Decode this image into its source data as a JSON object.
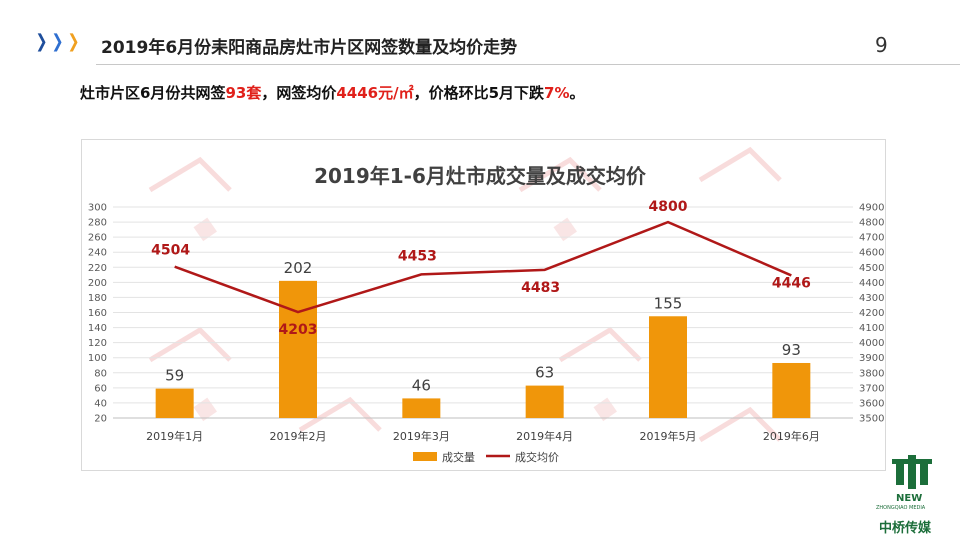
{
  "header": {
    "title": "2019年6月份耒阳商品房灶市片区网签数量及均价走势",
    "page_number": "9"
  },
  "summary": {
    "prefix": "灶市片区6月份共网签",
    "count": "93套",
    "mid": "，网签均价",
    "price": "4446元/㎡",
    "mid2": "，价格环比5月下跌",
    "pct": "7%",
    "suffix": "。"
  },
  "colors": {
    "bar": "#f0960a",
    "line": "#b01818",
    "accent_red": "#e0201a",
    "brand_green": "#1c6e3a"
  },
  "logo": {
    "new": "NEW",
    "sub": "ZHONGQIAO MEDIA",
    "cn": "中桥传媒"
  },
  "chart_data": {
    "type": "bar",
    "title": "2019年1-6月灶市成交量及成交均价",
    "categories": [
      "2019年1月",
      "2019年2月",
      "2019年3月",
      "2019年4月",
      "2019年5月",
      "2019年6月"
    ],
    "series": [
      {
        "name": "成交量",
        "type": "bar",
        "axis": "left",
        "values": [
          59,
          202,
          46,
          63,
          155,
          93
        ]
      },
      {
        "name": "成交均价",
        "type": "line",
        "axis": "right",
        "values": [
          4504,
          4203,
          4453,
          4483,
          4800,
          4446
        ]
      }
    ],
    "ylim_left": [
      20,
      300
    ],
    "yticks_left": [
      20,
      40,
      60,
      80,
      100,
      120,
      140,
      160,
      180,
      200,
      220,
      240,
      260,
      280,
      300
    ],
    "ylim_right": [
      3500,
      4900
    ],
    "yticks_right": [
      3500,
      3600,
      3700,
      3800,
      3900,
      4000,
      4100,
      4200,
      4300,
      4400,
      4500,
      4600,
      4700,
      4800,
      4900
    ],
    "grid": true,
    "legend": "bottom"
  }
}
